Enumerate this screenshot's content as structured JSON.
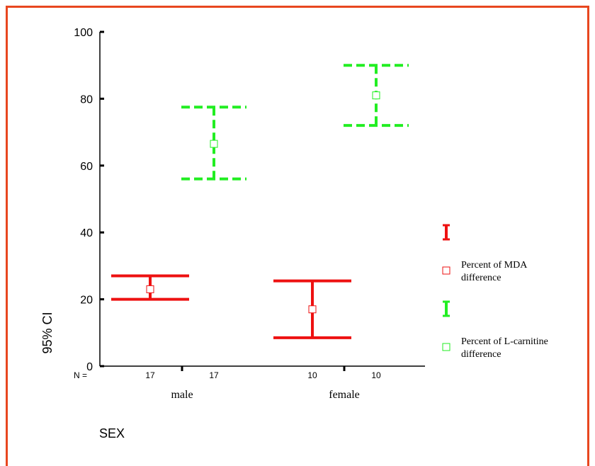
{
  "chart_data": {
    "type": "errorbar",
    "ylabel": "95% CI",
    "xlabel": "SEX",
    "ylim": [
      0,
      100
    ],
    "yticks": [
      0,
      20,
      40,
      60,
      80,
      100
    ],
    "n_label": "N =",
    "groups": [
      {
        "name": "male",
        "n": [
          17,
          17
        ]
      },
      {
        "name": "female",
        "n": [
          10,
          10
        ]
      }
    ],
    "series": [
      {
        "name": "Percent of MDA difference",
        "name_lines": [
          "Percent of MDA",
          "difference"
        ],
        "color": "#ee1111",
        "style": "solid",
        "points": [
          {
            "group": "male",
            "mean": 23,
            "low": 20,
            "high": 27
          },
          {
            "group": "female",
            "mean": 17,
            "low": 8.5,
            "high": 25.5
          }
        ]
      },
      {
        "name": "Percent of L-carnitine difference",
        "name_lines": [
          "Percent of L-carnitine",
          "difference"
        ],
        "color": "#22ee22",
        "style": "dashed",
        "points": [
          {
            "group": "male",
            "mean": 66.5,
            "low": 56,
            "high": 77.5
          },
          {
            "group": "female",
            "mean": 81,
            "low": 72,
            "high": 90
          }
        ]
      }
    ],
    "legend_position": "right"
  }
}
